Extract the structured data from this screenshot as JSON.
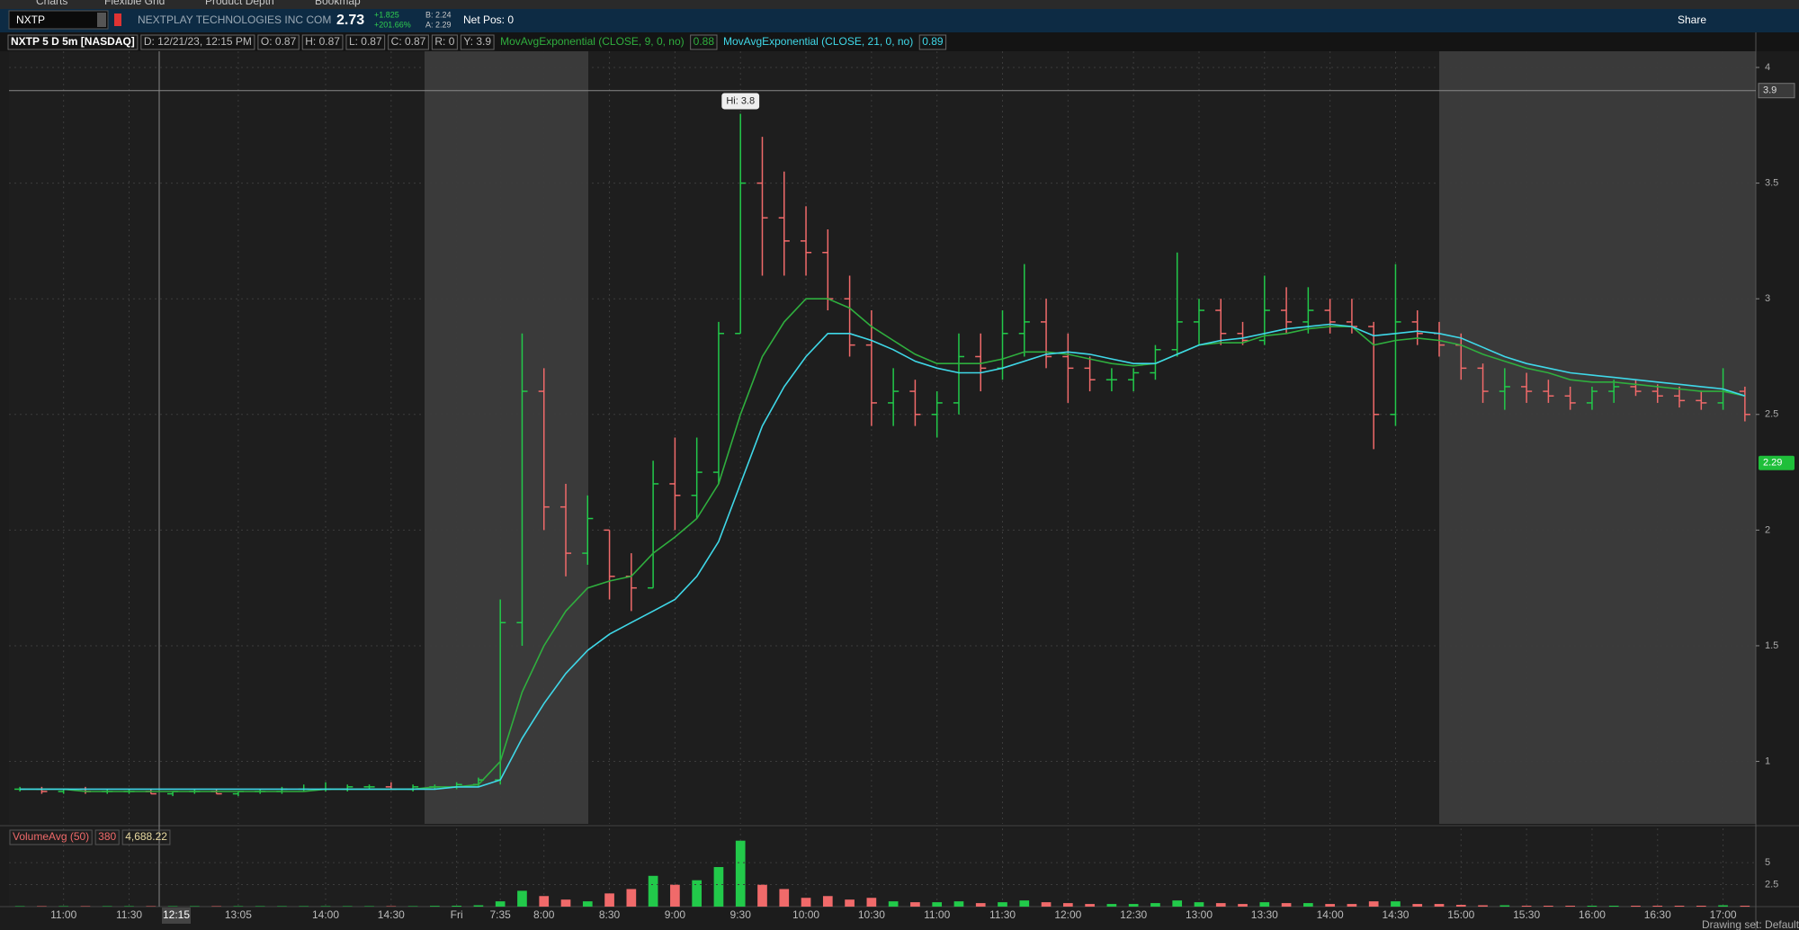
{
  "header": {
    "tabs": [
      "Charts",
      "Flexible Grid",
      "Product Depth",
      "Bookmap"
    ],
    "symbol": "NXTP",
    "company": "NEXTPLAY TECHNOLOGIES INC COM",
    "last": "2.73",
    "change": "+1.825",
    "change_pct": "+201.66%",
    "bid": "B: 2.24",
    "ask": "A: 2.29",
    "net_pos": "Net Pos: 0",
    "share": "Share"
  },
  "chart_data": {
    "type": "candlestick",
    "title": "NXTP 5 D 5m [NASDAQ]",
    "info": [
      "D: 12/21/23, 12:15 PM",
      "O: 0.87",
      "H: 0.87",
      "L: 0.87",
      "C: 0.87",
      "R: 0",
      "Y: 3.9"
    ],
    "categories": [
      null,
      null,
      "11:00",
      null,
      null,
      "11:30",
      null,
      null,
      null,
      null,
      "13:05",
      null,
      null,
      null,
      "14:00",
      null,
      null,
      "14:30",
      null,
      null,
      "Fri",
      null,
      "7:35",
      null,
      "8:00",
      null,
      null,
      "8:30",
      null,
      null,
      "9:00",
      null,
      null,
      "9:30",
      null,
      null,
      "10:00",
      null,
      null,
      "10:30",
      null,
      null,
      "11:00",
      null,
      null,
      "11:30",
      null,
      null,
      "12:00",
      null,
      null,
      "12:30",
      null,
      null,
      "13:00",
      null,
      null,
      "13:30",
      null,
      null,
      "14:00",
      null,
      null,
      "14:30",
      null,
      null,
      "15:00",
      null,
      null,
      "15:30",
      null,
      null,
      "16:00",
      null,
      null,
      "16:30",
      null,
      null,
      "17:00",
      null
    ],
    "open": [
      0.88,
      0.88,
      0.87,
      0.88,
      0.87,
      0.87,
      0.87,
      0.86,
      0.87,
      0.87,
      0.86,
      0.87,
      0.87,
      0.88,
      0.88,
      0.88,
      0.89,
      0.89,
      0.88,
      0.89,
      0.89,
      0.9,
      0.92,
      1.6,
      2.6,
      2.1,
      1.9,
      2.0,
      1.8,
      1.75,
      2.2,
      2.15,
      2.25,
      2.85,
      3.5,
      3.35,
      3.25,
      3.2,
      3.0,
      2.8,
      2.55,
      2.6,
      2.5,
      2.55,
      2.75,
      2.7,
      2.85,
      2.9,
      2.75,
      2.7,
      2.65,
      2.65,
      2.68,
      2.78,
      2.9,
      2.95,
      2.85,
      2.82,
      2.95,
      2.9,
      2.95,
      2.9,
      2.88,
      2.5,
      2.9,
      2.85,
      2.8,
      2.7,
      2.6,
      2.62,
      2.6,
      2.58,
      2.55,
      2.6,
      2.62,
      2.6,
      2.58,
      2.56,
      2.55,
      2.6
    ],
    "high": [
      0.89,
      0.89,
      0.88,
      0.89,
      0.88,
      0.88,
      0.88,
      0.87,
      0.88,
      0.88,
      0.87,
      0.88,
      0.89,
      0.9,
      0.91,
      0.9,
      0.9,
      0.91,
      0.9,
      0.9,
      0.91,
      0.93,
      1.7,
      2.85,
      2.7,
      2.2,
      2.15,
      2.0,
      1.9,
      2.3,
      2.4,
      2.4,
      2.9,
      3.8,
      3.7,
      3.55,
      3.4,
      3.3,
      3.1,
      2.95,
      2.7,
      2.65,
      2.6,
      2.85,
      2.85,
      2.95,
      3.15,
      3.0,
      2.85,
      2.75,
      2.7,
      2.7,
      2.8,
      3.2,
      3.0,
      3.0,
      2.9,
      3.1,
      3.05,
      3.05,
      3.0,
      3.0,
      2.9,
      3.15,
      2.95,
      2.9,
      2.85,
      2.72,
      2.7,
      2.68,
      2.65,
      2.62,
      2.62,
      2.65,
      2.65,
      2.63,
      2.62,
      2.6,
      2.7,
      2.62
    ],
    "low": [
      0.87,
      0.86,
      0.86,
      0.86,
      0.86,
      0.86,
      0.86,
      0.85,
      0.86,
      0.86,
      0.85,
      0.86,
      0.86,
      0.87,
      0.87,
      0.87,
      0.88,
      0.88,
      0.87,
      0.88,
      0.88,
      0.89,
      0.9,
      1.5,
      2.0,
      1.8,
      1.85,
      1.7,
      1.65,
      1.75,
      2.0,
      2.05,
      2.2,
      2.85,
      3.1,
      3.1,
      3.1,
      2.95,
      2.75,
      2.45,
      2.45,
      2.45,
      2.4,
      2.5,
      2.6,
      2.65,
      2.75,
      2.7,
      2.55,
      2.6,
      2.6,
      2.6,
      2.65,
      2.75,
      2.8,
      2.8,
      2.8,
      2.8,
      2.85,
      2.85,
      2.85,
      2.85,
      2.35,
      2.45,
      2.8,
      2.75,
      2.65,
      2.55,
      2.52,
      2.55,
      2.55,
      2.52,
      2.52,
      2.55,
      2.58,
      2.55,
      2.53,
      2.52,
      2.52,
      2.47
    ],
    "close": [
      0.88,
      0.87,
      0.88,
      0.87,
      0.87,
      0.87,
      0.86,
      0.87,
      0.87,
      0.86,
      0.87,
      0.87,
      0.88,
      0.88,
      0.88,
      0.89,
      0.89,
      0.88,
      0.89,
      0.89,
      0.9,
      0.92,
      1.6,
      2.6,
      2.1,
      1.9,
      2.05,
      1.8,
      1.75,
      2.2,
      2.15,
      2.25,
      2.85,
      3.5,
      3.35,
      3.25,
      3.2,
      3.0,
      2.8,
      2.55,
      2.6,
      2.5,
      2.55,
      2.75,
      2.7,
      2.85,
      2.9,
      2.75,
      2.7,
      2.65,
      2.65,
      2.68,
      2.78,
      2.9,
      2.95,
      2.85,
      2.82,
      2.95,
      2.9,
      2.95,
      2.9,
      2.88,
      2.5,
      2.9,
      2.85,
      2.8,
      2.7,
      2.6,
      2.62,
      2.6,
      2.58,
      2.55,
      2.6,
      2.62,
      2.6,
      2.58,
      2.56,
      2.55,
      2.6,
      2.5
    ],
    "up_color": "#22c94a",
    "down_color": "#f06a6a",
    "studies": [
      {
        "name": "MovAvgExponential (CLOSE, 9, 0, no)",
        "value_label": "0.88",
        "color": "#2fae3e",
        "values": [
          0.88,
          0.88,
          0.88,
          0.87,
          0.87,
          0.87,
          0.87,
          0.87,
          0.87,
          0.87,
          0.87,
          0.87,
          0.87,
          0.87,
          0.88,
          0.88,
          0.88,
          0.88,
          0.88,
          0.89,
          0.89,
          0.9,
          1.0,
          1.3,
          1.5,
          1.65,
          1.75,
          1.78,
          1.8,
          1.9,
          1.97,
          2.05,
          2.2,
          2.5,
          2.75,
          2.9,
          3.0,
          3.0,
          2.96,
          2.88,
          2.82,
          2.76,
          2.72,
          2.72,
          2.72,
          2.74,
          2.77,
          2.77,
          2.76,
          2.74,
          2.72,
          2.71,
          2.72,
          2.76,
          2.8,
          2.81,
          2.81,
          2.84,
          2.85,
          2.87,
          2.88,
          2.88,
          2.8,
          2.82,
          2.83,
          2.82,
          2.8,
          2.76,
          2.73,
          2.7,
          2.68,
          2.65,
          2.64,
          2.64,
          2.63,
          2.62,
          2.61,
          2.6,
          2.6,
          2.58
        ]
      },
      {
        "name": "MovAvgExponential (CLOSE, 21, 0, no)",
        "value_label": "0.89",
        "color": "#3fd8e8",
        "values": [
          0.88,
          0.88,
          0.88,
          0.88,
          0.88,
          0.88,
          0.88,
          0.88,
          0.88,
          0.88,
          0.88,
          0.88,
          0.88,
          0.88,
          0.88,
          0.88,
          0.88,
          0.88,
          0.88,
          0.88,
          0.89,
          0.89,
          0.92,
          1.1,
          1.25,
          1.38,
          1.48,
          1.55,
          1.6,
          1.65,
          1.7,
          1.8,
          1.95,
          2.2,
          2.45,
          2.62,
          2.75,
          2.85,
          2.85,
          2.82,
          2.78,
          2.73,
          2.7,
          2.68,
          2.68,
          2.7,
          2.73,
          2.76,
          2.77,
          2.76,
          2.74,
          2.72,
          2.72,
          2.76,
          2.8,
          2.82,
          2.83,
          2.85,
          2.87,
          2.88,
          2.89,
          2.88,
          2.84,
          2.85,
          2.86,
          2.85,
          2.83,
          2.79,
          2.75,
          2.72,
          2.7,
          2.68,
          2.67,
          2.66,
          2.65,
          2.64,
          2.63,
          2.62,
          2.61,
          2.58
        ]
      }
    ],
    "ylim": [
      0.73,
      4.07
    ],
    "yticks": [
      1,
      1.5,
      2,
      2.5,
      3,
      3.5,
      4
    ],
    "grid": true,
    "high_label": "Hi: 3.8",
    "cursor": {
      "time": "12:15",
      "price": 3.9
    },
    "ask_marker": 2.29,
    "volume": {
      "legend": [
        "VolumeAvg (50)",
        "380",
        "4,688.22"
      ],
      "values": [
        0.05,
        0.05,
        0.05,
        0.05,
        0.05,
        0.05,
        0.05,
        0.05,
        0.05,
        0.05,
        0.05,
        0.05,
        0.05,
        0.05,
        0.05,
        0.05,
        0.05,
        0.05,
        0.05,
        0.08,
        0.1,
        0.15,
        0.6,
        1.8,
        1.2,
        0.8,
        0.6,
        1.5,
        2.0,
        3.5,
        2.5,
        3.0,
        4.5,
        7.5,
        2.5,
        2.0,
        1.0,
        1.2,
        0.8,
        1.0,
        0.6,
        0.5,
        0.5,
        0.6,
        0.4,
        0.5,
        0.7,
        0.5,
        0.4,
        0.3,
        0.3,
        0.3,
        0.4,
        0.7,
        0.5,
        0.4,
        0.3,
        0.5,
        0.4,
        0.4,
        0.3,
        0.3,
        0.6,
        0.6,
        0.3,
        0.3,
        0.2,
        0.15,
        0.15,
        0.1,
        0.1,
        0.1,
        0.1,
        0.1,
        0.1,
        0.1,
        0.1,
        0.1,
        0.15,
        0.1
      ],
      "ylim": [
        0,
        8.9
      ],
      "yticks": [
        2.5,
        5
      ]
    }
  },
  "footer": {
    "drawing_set": "Drawing set: Default"
  }
}
